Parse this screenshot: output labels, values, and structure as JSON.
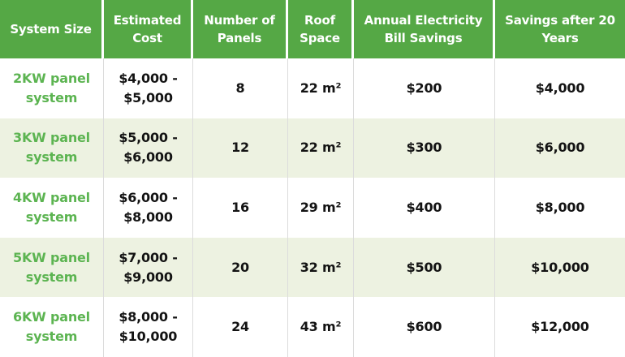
{
  "colors": {
    "header_bg": "#55a845",
    "header_text": "#ffffff",
    "row_bg": "#ffffff",
    "row_alt_bg": "#edf2e1",
    "system_size_text": "#5cb451",
    "body_text": "#131313",
    "header_divider": "#ffffff",
    "body_divider": "#dcdcdc"
  },
  "chart_data": {
    "type": "table",
    "columns": [
      "System Size",
      "Estimated Cost",
      "Number of Panels",
      "Roof Space",
      "Annual Electricity Bill Savings",
      "Savings after 20 Years"
    ],
    "rows": [
      [
        "2KW panel system",
        "$4,000 - $5,000",
        "8",
        "22 m²",
        "$200",
        "$4,000"
      ],
      [
        "3KW panel system",
        "$5,000 - $6,000",
        "12",
        "22 m²",
        "$300",
        "$6,000"
      ],
      [
        "4KW panel system",
        "$6,000 - $8,000",
        "16",
        "29 m²",
        "$400",
        "$8,000"
      ],
      [
        "5KW panel system",
        "$7,000 - $9,000",
        "20",
        "32 m²",
        "$500",
        "$10,000"
      ],
      [
        "6KW panel system",
        "$8,000 - $10,000",
        "24",
        "43 m²",
        "$600",
        "$12,000"
      ]
    ]
  }
}
